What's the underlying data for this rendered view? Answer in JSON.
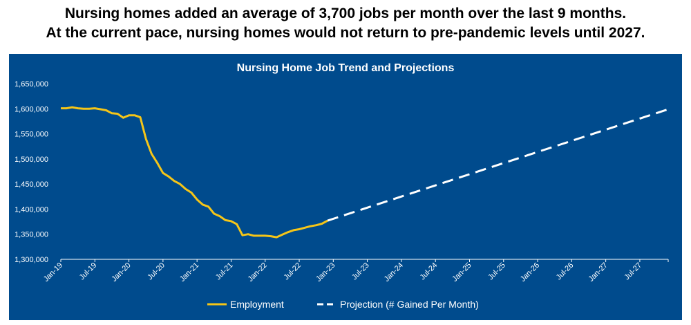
{
  "headline": {
    "line1": "Nursing homes added an average of 3,700 jobs per month over the last 9 months.",
    "line2": "At the current pace, nursing homes would not return to pre-pandemic levels until 2027."
  },
  "colors": {
    "panel_background": "#004b8d",
    "employment_line": "#f5c518",
    "projection_line": "#ffffff",
    "text": "#ffffff"
  },
  "chart_data": {
    "type": "line",
    "title": "Nursing Home Job Trend and Projections",
    "xlabel": "",
    "ylabel": "",
    "ylim": [
      1300000,
      1650000
    ],
    "y_ticks": [
      "1,300,000",
      "1,350,000",
      "1,400,000",
      "1,450,000",
      "1,500,000",
      "1,550,000",
      "1,600,000",
      "1,650,000"
    ],
    "x_tick_labels": [
      "Jan-19",
      "Jul-19",
      "Jan-20",
      "Jul-20",
      "Jan-21",
      "Jul-21",
      "Jan-22",
      "Jul-22",
      "Jan-23",
      "Jul-23",
      "Jan-24",
      "Jul-24",
      "Jan-25",
      "Jul-25",
      "Jan-26",
      "Jul-26",
      "Jan-27",
      "Jul-27"
    ],
    "x_range": [
      "2019-01",
      "2027-12"
    ],
    "grid": false,
    "legend_position": "bottom",
    "series": [
      {
        "name": "Employment",
        "style": "solid",
        "points": [
          [
            "2019-01",
            1601000
          ],
          [
            "2019-02",
            1601000
          ],
          [
            "2019-03",
            1603000
          ],
          [
            "2019-04",
            1601000
          ],
          [
            "2019-05",
            1600000
          ],
          [
            "2019-06",
            1600000
          ],
          [
            "2019-07",
            1601000
          ],
          [
            "2019-08",
            1599000
          ],
          [
            "2019-09",
            1597000
          ],
          [
            "2019-10",
            1591000
          ],
          [
            "2019-11",
            1590000
          ],
          [
            "2019-12",
            1582000
          ],
          [
            "2020-01",
            1587000
          ],
          [
            "2020-02",
            1587000
          ],
          [
            "2020-03",
            1583000
          ],
          [
            "2020-04",
            1540000
          ],
          [
            "2020-05",
            1510000
          ],
          [
            "2020-06",
            1492000
          ],
          [
            "2020-07",
            1472000
          ],
          [
            "2020-08",
            1465000
          ],
          [
            "2020-09",
            1456000
          ],
          [
            "2020-10",
            1450000
          ],
          [
            "2020-11",
            1440000
          ],
          [
            "2020-12",
            1433000
          ],
          [
            "2021-01",
            1419000
          ],
          [
            "2021-02",
            1409000
          ],
          [
            "2021-03",
            1405000
          ],
          [
            "2021-04",
            1391000
          ],
          [
            "2021-05",
            1386000
          ],
          [
            "2021-06",
            1378000
          ],
          [
            "2021-07",
            1376000
          ],
          [
            "2021-08",
            1370000
          ],
          [
            "2021-09",
            1348000
          ],
          [
            "2021-10",
            1350000
          ],
          [
            "2021-11",
            1347000
          ],
          [
            "2021-12",
            1347000
          ],
          [
            "2022-01",
            1347000
          ],
          [
            "2022-02",
            1346000
          ],
          [
            "2022-03",
            1344000
          ],
          [
            "2022-04",
            1349000
          ],
          [
            "2022-05",
            1354000
          ],
          [
            "2022-06",
            1358000
          ],
          [
            "2022-07",
            1360000
          ],
          [
            "2022-08",
            1363000
          ],
          [
            "2022-09",
            1366000
          ],
          [
            "2022-10",
            1368000
          ],
          [
            "2022-11",
            1371000
          ],
          [
            "2022-12",
            1377000
          ]
        ]
      },
      {
        "name": "Projection (# Gained Per Month)",
        "style": "dashed",
        "points": [
          [
            "2022-12",
            1377000
          ],
          [
            "2027-12",
            1599000
          ]
        ]
      }
    ]
  }
}
